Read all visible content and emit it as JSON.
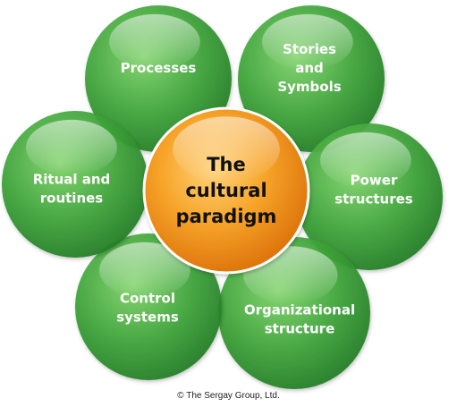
{
  "diagram": {
    "center": {
      "lines": [
        "The",
        "cultural",
        "paradigm"
      ],
      "color": "#f39c1c"
    },
    "petal_color": "#3fa53a",
    "petals": [
      {
        "id": "processes",
        "lines": [
          "Processes"
        ]
      },
      {
        "id": "stories-and-symbols",
        "lines": [
          "Stories",
          "and",
          "Symbols"
        ]
      },
      {
        "id": "power-structures",
        "lines": [
          "Power",
          "structures"
        ]
      },
      {
        "id": "organizational-structure",
        "lines": [
          "Organizational",
          "structure"
        ]
      },
      {
        "id": "control-systems",
        "lines": [
          "Control",
          "systems"
        ]
      },
      {
        "id": "ritual-and-routines",
        "lines": [
          "Ritual and",
          "routines"
        ]
      }
    ]
  },
  "footer": {
    "copyright_symbol": "©",
    "copyright_text": "The Sergay Group, Ltd."
  }
}
